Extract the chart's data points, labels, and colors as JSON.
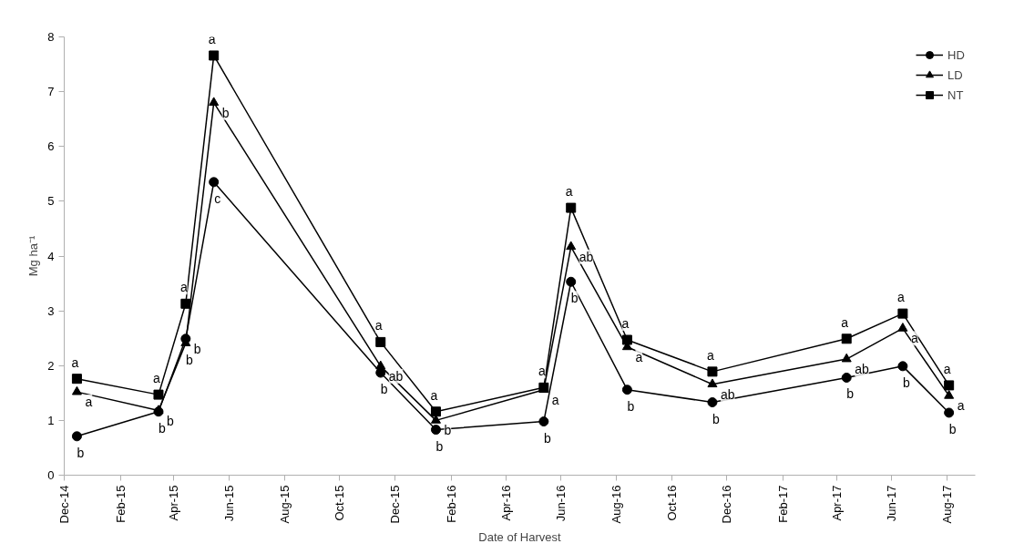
{
  "chart_data": {
    "type": "line",
    "xlabel": "Date of Harvest",
    "ylabel": "Mg ha⁻¹",
    "x": [
      "2014-12-15",
      "2015-03-15",
      "2015-04-14",
      "2015-05-15",
      "2015-11-15",
      "2016-01-15",
      "2016-05-13",
      "2016-06-12",
      "2016-08-13",
      "2016-11-15",
      "2017-04-12",
      "2017-06-13",
      "2017-08-03"
    ],
    "series": [
      {
        "name": "HD",
        "color": "#000000",
        "marker": "circle",
        "values": [
          0.71,
          1.16,
          2.49,
          5.35,
          1.87,
          0.83,
          0.98,
          3.53,
          1.56,
          1.33,
          1.78,
          1.99,
          1.14
        ]
      },
      {
        "name": "LD",
        "color": "#000000",
        "marker": "triangle",
        "values": [
          1.52,
          1.18,
          2.41,
          6.8,
          1.99,
          1.0,
          1.56,
          4.17,
          2.34,
          1.66,
          2.12,
          2.68,
          1.45
        ]
      },
      {
        "name": "NT",
        "color": "#000000",
        "marker": "square",
        "values": [
          1.76,
          1.47,
          3.13,
          7.66,
          2.43,
          1.16,
          1.6,
          4.88,
          2.47,
          1.89,
          2.49,
          2.95,
          1.64
        ]
      }
    ],
    "xlim": [
      "2014-12-01",
      "2017-09-01"
    ],
    "xticks": [
      {
        "value": "2014-12-01",
        "label": "Dec-14"
      },
      {
        "value": "2015-02-01",
        "label": "Feb-15"
      },
      {
        "value": "2015-04-01",
        "label": "Apr-15"
      },
      {
        "value": "2015-06-01",
        "label": "Jun-15"
      },
      {
        "value": "2015-08-01",
        "label": "Aug-15"
      },
      {
        "value": "2015-10-01",
        "label": "Oct-15"
      },
      {
        "value": "2015-12-01",
        "label": "Dec-15"
      },
      {
        "value": "2016-02-01",
        "label": "Feb-16"
      },
      {
        "value": "2016-04-01",
        "label": "Apr-16"
      },
      {
        "value": "2016-06-01",
        "label": "Jun-16"
      },
      {
        "value": "2016-08-01",
        "label": "Aug-16"
      },
      {
        "value": "2016-10-01",
        "label": "Oct-16"
      },
      {
        "value": "2016-12-01",
        "label": "Dec-16"
      },
      {
        "value": "2017-02-01",
        "label": "Feb-17"
      },
      {
        "value": "2017-04-01",
        "label": "Apr-17"
      },
      {
        "value": "2017-06-01",
        "label": "Jun-17"
      },
      {
        "value": "2017-08-01",
        "label": "Aug-17"
      }
    ],
    "ylim": [
      0,
      8
    ],
    "yticks": [
      0,
      1,
      2,
      3,
      4,
      5,
      6,
      7,
      8
    ],
    "grid": false,
    "legend": "top right",
    "line_style": "solid",
    "annotations": [
      {
        "text": "a",
        "x": "2014-12-15",
        "y": 1.76
      },
      {
        "text": "a",
        "x": "2014-12-15",
        "y": 1.52
      },
      {
        "text": "b",
        "x": "2014-12-15",
        "y": 0.71
      },
      {
        "text": "a",
        "x": "2015-03-15",
        "y": 1.47
      },
      {
        "text": "b",
        "x": "2015-03-15",
        "y": 1.18
      },
      {
        "text": "b",
        "x": "2015-03-15",
        "y": 1.16
      },
      {
        "text": "a",
        "x": "2015-04-14",
        "y": 3.13
      },
      {
        "text": "b",
        "x": "2015-04-14",
        "y": 2.41
      },
      {
        "text": "b",
        "x": "2015-04-14",
        "y": 2.49
      },
      {
        "text": "a",
        "x": "2015-05-15",
        "y": 7.66
      },
      {
        "text": "b",
        "x": "2015-05-15",
        "y": 6.8
      },
      {
        "text": "c",
        "x": "2015-05-15",
        "y": 5.35
      },
      {
        "text": "a",
        "x": "2015-11-15",
        "y": 2.43
      },
      {
        "text": "ab",
        "x": "2015-11-15",
        "y": 1.99
      },
      {
        "text": "b",
        "x": "2015-11-15",
        "y": 1.87
      },
      {
        "text": "a",
        "x": "2016-01-15",
        "y": 1.16
      },
      {
        "text": "b",
        "x": "2016-01-15",
        "y": 1.0
      },
      {
        "text": "b",
        "x": "2016-01-15",
        "y": 0.83
      },
      {
        "text": "a",
        "x": "2016-05-13",
        "y": 1.6
      },
      {
        "text": "a",
        "x": "2016-05-13",
        "y": 1.56
      },
      {
        "text": "b",
        "x": "2016-05-13",
        "y": 0.98
      },
      {
        "text": "a",
        "x": "2016-06-12",
        "y": 4.88
      },
      {
        "text": "ab",
        "x": "2016-06-12",
        "y": 4.17
      },
      {
        "text": "b",
        "x": "2016-06-12",
        "y": 3.53
      },
      {
        "text": "a",
        "x": "2016-08-13",
        "y": 2.47
      },
      {
        "text": "a",
        "x": "2016-08-13",
        "y": 2.34
      },
      {
        "text": "b",
        "x": "2016-08-13",
        "y": 1.56
      },
      {
        "text": "a",
        "x": "2016-11-15",
        "y": 1.89
      },
      {
        "text": "ab",
        "x": "2016-11-15",
        "y": 1.66
      },
      {
        "text": "b",
        "x": "2016-11-15",
        "y": 1.33
      },
      {
        "text": "a",
        "x": "2017-04-12",
        "y": 2.49
      },
      {
        "text": "ab",
        "x": "2017-04-12",
        "y": 2.12
      },
      {
        "text": "b",
        "x": "2017-04-12",
        "y": 1.78
      },
      {
        "text": "a",
        "x": "2017-06-13",
        "y": 2.95
      },
      {
        "text": "a",
        "x": "2017-06-13",
        "y": 2.68
      },
      {
        "text": "b",
        "x": "2017-06-13",
        "y": 1.99
      },
      {
        "text": "a",
        "x": "2017-08-03",
        "y": 1.64
      },
      {
        "text": "a",
        "x": "2017-08-03",
        "y": 1.45
      },
      {
        "text": "b",
        "x": "2017-08-03",
        "y": 1.14
      }
    ]
  }
}
